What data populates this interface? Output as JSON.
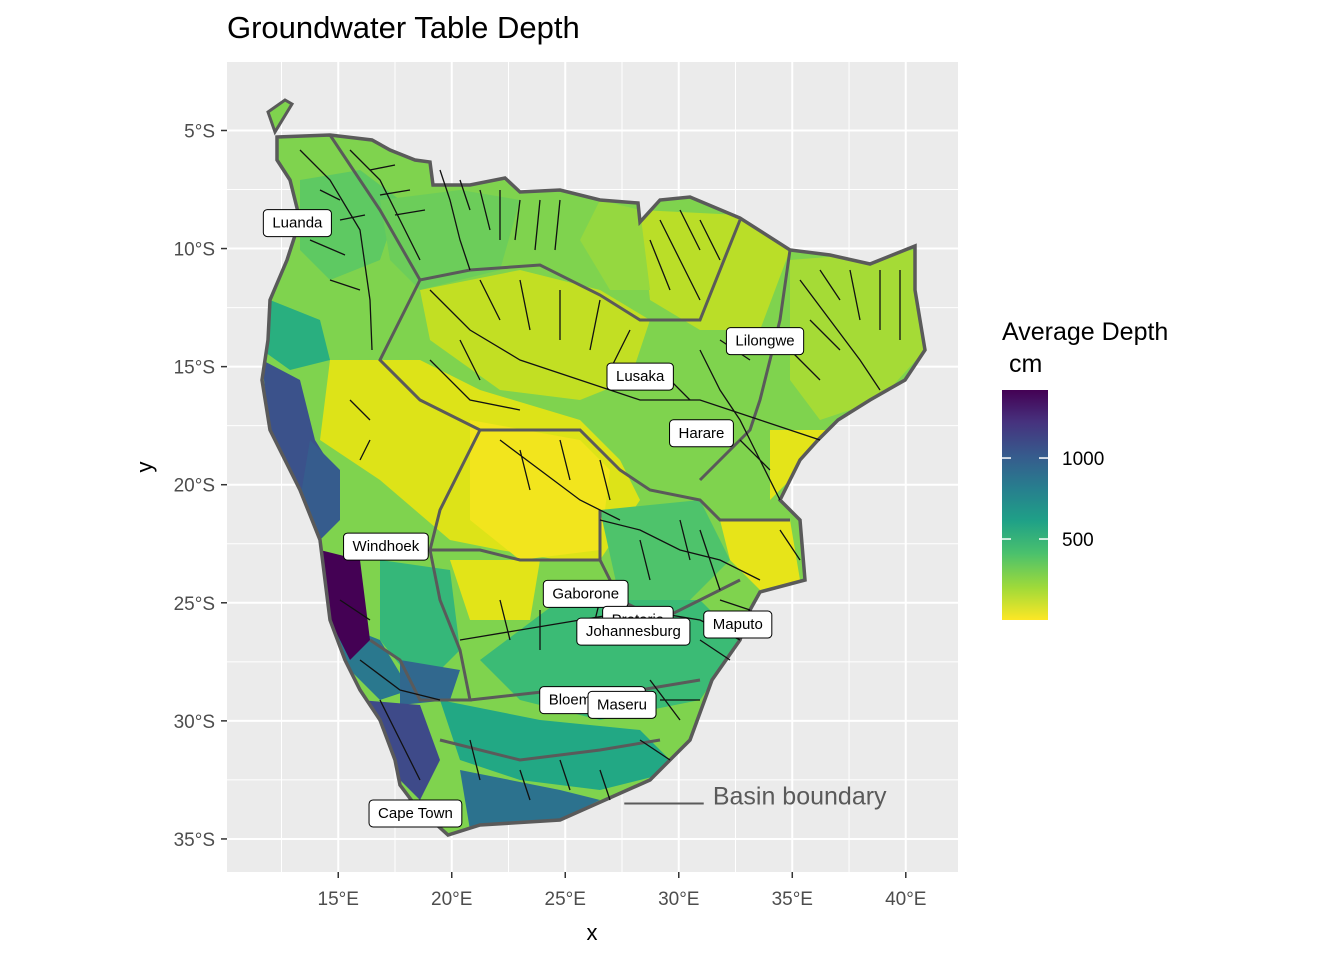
{
  "title": "Groundwater Table Depth",
  "axes": {
    "x_label": "x",
    "y_label": "y",
    "x_ticks": [
      {
        "value": 15,
        "label": "15°E"
      },
      {
        "value": 20,
        "label": "20°E"
      },
      {
        "value": 25,
        "label": "25°E"
      },
      {
        "value": 30,
        "label": "30°E"
      },
      {
        "value": 35,
        "label": "35°E"
      },
      {
        "value": 40,
        "label": "40°E"
      }
    ],
    "y_ticks": [
      {
        "value": -5,
        "label": "5°S"
      },
      {
        "value": -10,
        "label": "10°S"
      },
      {
        "value": -15,
        "label": "15°S"
      },
      {
        "value": -20,
        "label": "20°S"
      },
      {
        "value": -25,
        "label": "25°S"
      },
      {
        "value": -30,
        "label": "30°S"
      },
      {
        "value": -35,
        "label": "35°S"
      }
    ],
    "xlim": [
      10.1,
      42.3
    ],
    "ylim": [
      -36.4,
      -2.1
    ],
    "panel_background": "#ebebeb",
    "grid_color": "#ffffff",
    "grid": true
  },
  "legend": {
    "title_line1": "Average Depth",
    "title_line2": " cm",
    "placement": "right",
    "min": 0,
    "max": 1420,
    "ticks": [
      {
        "value": 500,
        "label": "500"
      },
      {
        "value": 1000,
        "label": "1000"
      }
    ],
    "colors": [
      "#fde725",
      "#a0da39",
      "#4ac16d",
      "#1fa187",
      "#277f8e",
      "#365c8d",
      "#46327e",
      "#440154"
    ]
  },
  "annotation": {
    "text": "Basin boundary",
    "line_x": [
      27.6,
      31.1
    ],
    "line_y": -33.5,
    "text_x": 31.5,
    "text_y": -33.2,
    "color": "#5a5a5a"
  },
  "cities": [
    {
      "name": "Luanda",
      "lon": 13.2,
      "lat": -8.9
    },
    {
      "name": "Lilongwe",
      "lon": 33.8,
      "lat": -13.9
    },
    {
      "name": "Lusaka",
      "lon": 28.3,
      "lat": -15.4
    },
    {
      "name": "Harare",
      "lon": 31.0,
      "lat": -17.8
    },
    {
      "name": "Windhoek",
      "lon": 17.1,
      "lat": -22.6
    },
    {
      "name": "Gaborone",
      "lon": 25.9,
      "lat": -24.6
    },
    {
      "name": "Pretoria",
      "lon": 28.2,
      "lat": -25.7
    },
    {
      "name": "Johannesburg",
      "lon": 28.0,
      "lat": -26.2
    },
    {
      "name": "Maputo",
      "lon": 32.6,
      "lat": -25.9
    },
    {
      "name": "Bloemfontein",
      "lon": 26.2,
      "lat": -29.1
    },
    {
      "name": "Maseru",
      "lon": 27.5,
      "lat": -29.3
    },
    {
      "name": "Cape Town",
      "lon": 18.4,
      "lat": -33.9
    }
  ]
}
